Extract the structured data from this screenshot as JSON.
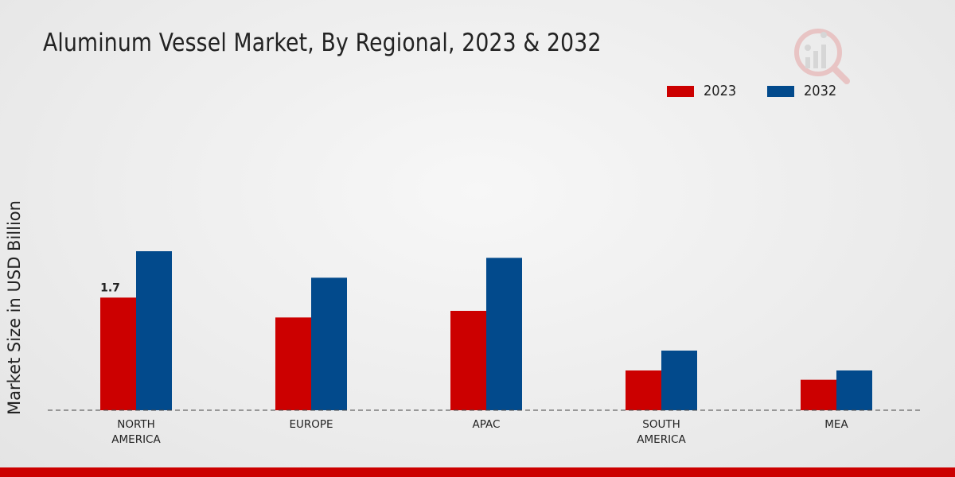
{
  "chart_data": {
    "type": "bar",
    "title": "Aluminum Vessel Market, By Regional, 2023 & 2032",
    "xlabel": "",
    "ylabel": "Market Size in USD Billion",
    "categories": [
      "NORTH\nAMERICA",
      "EUROPE",
      "APAC",
      "SOUTH\nAMERICA",
      "MEA"
    ],
    "series": [
      {
        "name": "2023",
        "color": "#cc0000",
        "values": [
          1.7,
          1.4,
          1.5,
          0.6,
          0.46
        ]
      },
      {
        "name": "2032",
        "color": "#024a8c",
        "values": [
          2.4,
          2.0,
          2.3,
          0.9,
          0.6
        ]
      }
    ],
    "data_labels": [
      {
        "series": 0,
        "index": 0,
        "text": "1.7"
      }
    ],
    "ylim": [
      0,
      4.2
    ],
    "grid": false,
    "legend": "top-right"
  }
}
